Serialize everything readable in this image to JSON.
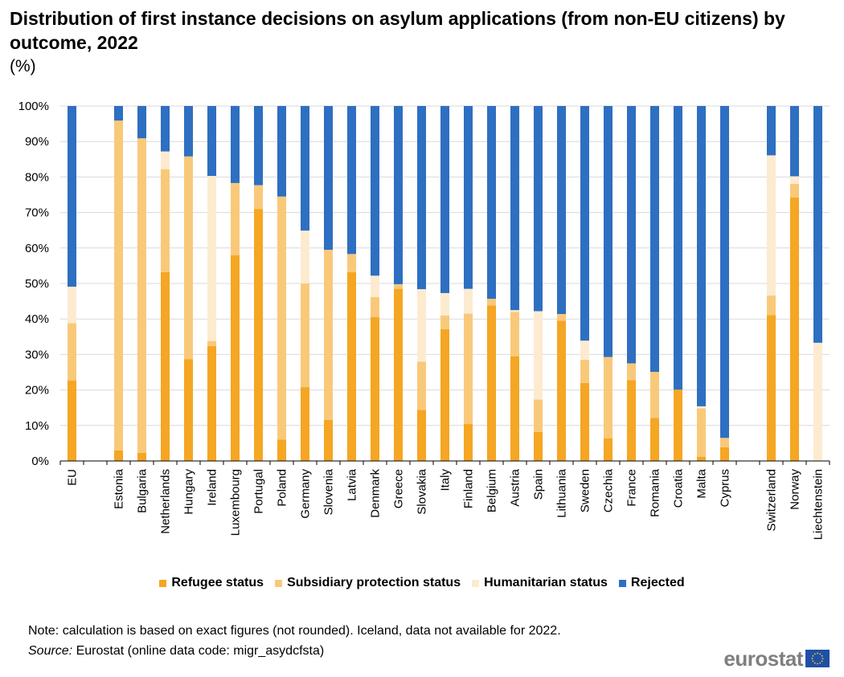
{
  "title": "Distribution of first instance decisions on asylum applications (from non-EU citizens) by outcome, 2022",
  "subtitle": "(%)",
  "note": "Note: calculation is based on exact figures (not rounded). Iceland, data not available for 2022.",
  "source_label": "Source:",
  "source_text": "Eurostat (online data code: migr_asydcfsta)",
  "logo_text": "eurostat",
  "chart_data": {
    "type": "bar",
    "stacked": true,
    "categories": [
      "EU",
      "Estonia",
      "Bulgaria",
      "Netherlands",
      "Hungary",
      "Ireland",
      "Luxembourg",
      "Portugal",
      "Poland",
      "Germany",
      "Slovenia",
      "Latvia",
      "Denmark",
      "Greece",
      "Slovakia",
      "Italy",
      "Finland",
      "Belgium",
      "Austria",
      "Spain",
      "Lithuania",
      "Sweden",
      "Czechia",
      "France",
      "Romania",
      "Croatia",
      "Malta",
      "Cyprus",
      "Switzerland",
      "Norway",
      "Liechtenstein"
    ],
    "groups": [
      1,
      27,
      3
    ],
    "series": [
      {
        "name": "Refugee status",
        "color": "#f5a623",
        "values": [
          22.7,
          3.0,
          2.3,
          53.2,
          28.7,
          32.4,
          58.0,
          71.0,
          6.0,
          20.8,
          11.6,
          53.2,
          40.5,
          48.5,
          14.4,
          37.1,
          10.4,
          43.8,
          29.5,
          8.2,
          39.5,
          22.0,
          6.4,
          22.8,
          12.1,
          20.1,
          1.2,
          3.9,
          41.1,
          74.2,
          0.0
        ]
      },
      {
        "name": "Subsidiary protection status",
        "color": "#f9c97a",
        "values": [
          16.1,
          92.9,
          88.6,
          29.0,
          57.1,
          1.4,
          20.3,
          6.7,
          68.5,
          29.2,
          47.9,
          5.1,
          5.7,
          1.3,
          13.6,
          3.9,
          31.1,
          1.9,
          12.5,
          9.1,
          1.9,
          6.5,
          22.9,
          4.7,
          13.0,
          0.0,
          13.6,
          2.6,
          5.5,
          3.9,
          0.0
        ]
      },
      {
        "name": "Humanitarian status",
        "color": "#fdebd0",
        "values": [
          10.3,
          0.0,
          0.0,
          5.0,
          0.0,
          46.5,
          0.0,
          0.0,
          0.0,
          14.9,
          0.0,
          0.0,
          6.0,
          0.0,
          20.4,
          6.3,
          7.0,
          0.0,
          0.5,
          24.9,
          0.0,
          5.4,
          0.0,
          0.0,
          0.0,
          0.0,
          0.6,
          0.0,
          39.5,
          2.1,
          33.3
        ]
      },
      {
        "name": "Rejected",
        "color": "#2e6fc1",
        "values": [
          50.9,
          4.1,
          9.1,
          12.8,
          14.2,
          19.7,
          21.7,
          22.3,
          25.5,
          35.1,
          40.5,
          41.7,
          47.8,
          50.2,
          51.6,
          52.7,
          51.5,
          54.3,
          57.5,
          57.8,
          58.6,
          66.1,
          70.7,
          72.5,
          74.9,
          79.9,
          84.6,
          93.5,
          13.9,
          19.8,
          66.7
        ]
      }
    ],
    "ylabel": "",
    "xlabel": "",
    "ylim": [
      0,
      100
    ],
    "yticks": [
      "0%",
      "10%",
      "20%",
      "30%",
      "40%",
      "50%",
      "60%",
      "70%",
      "80%",
      "90%",
      "100%"
    ],
    "grid": true,
    "legend_position": "bottom"
  }
}
